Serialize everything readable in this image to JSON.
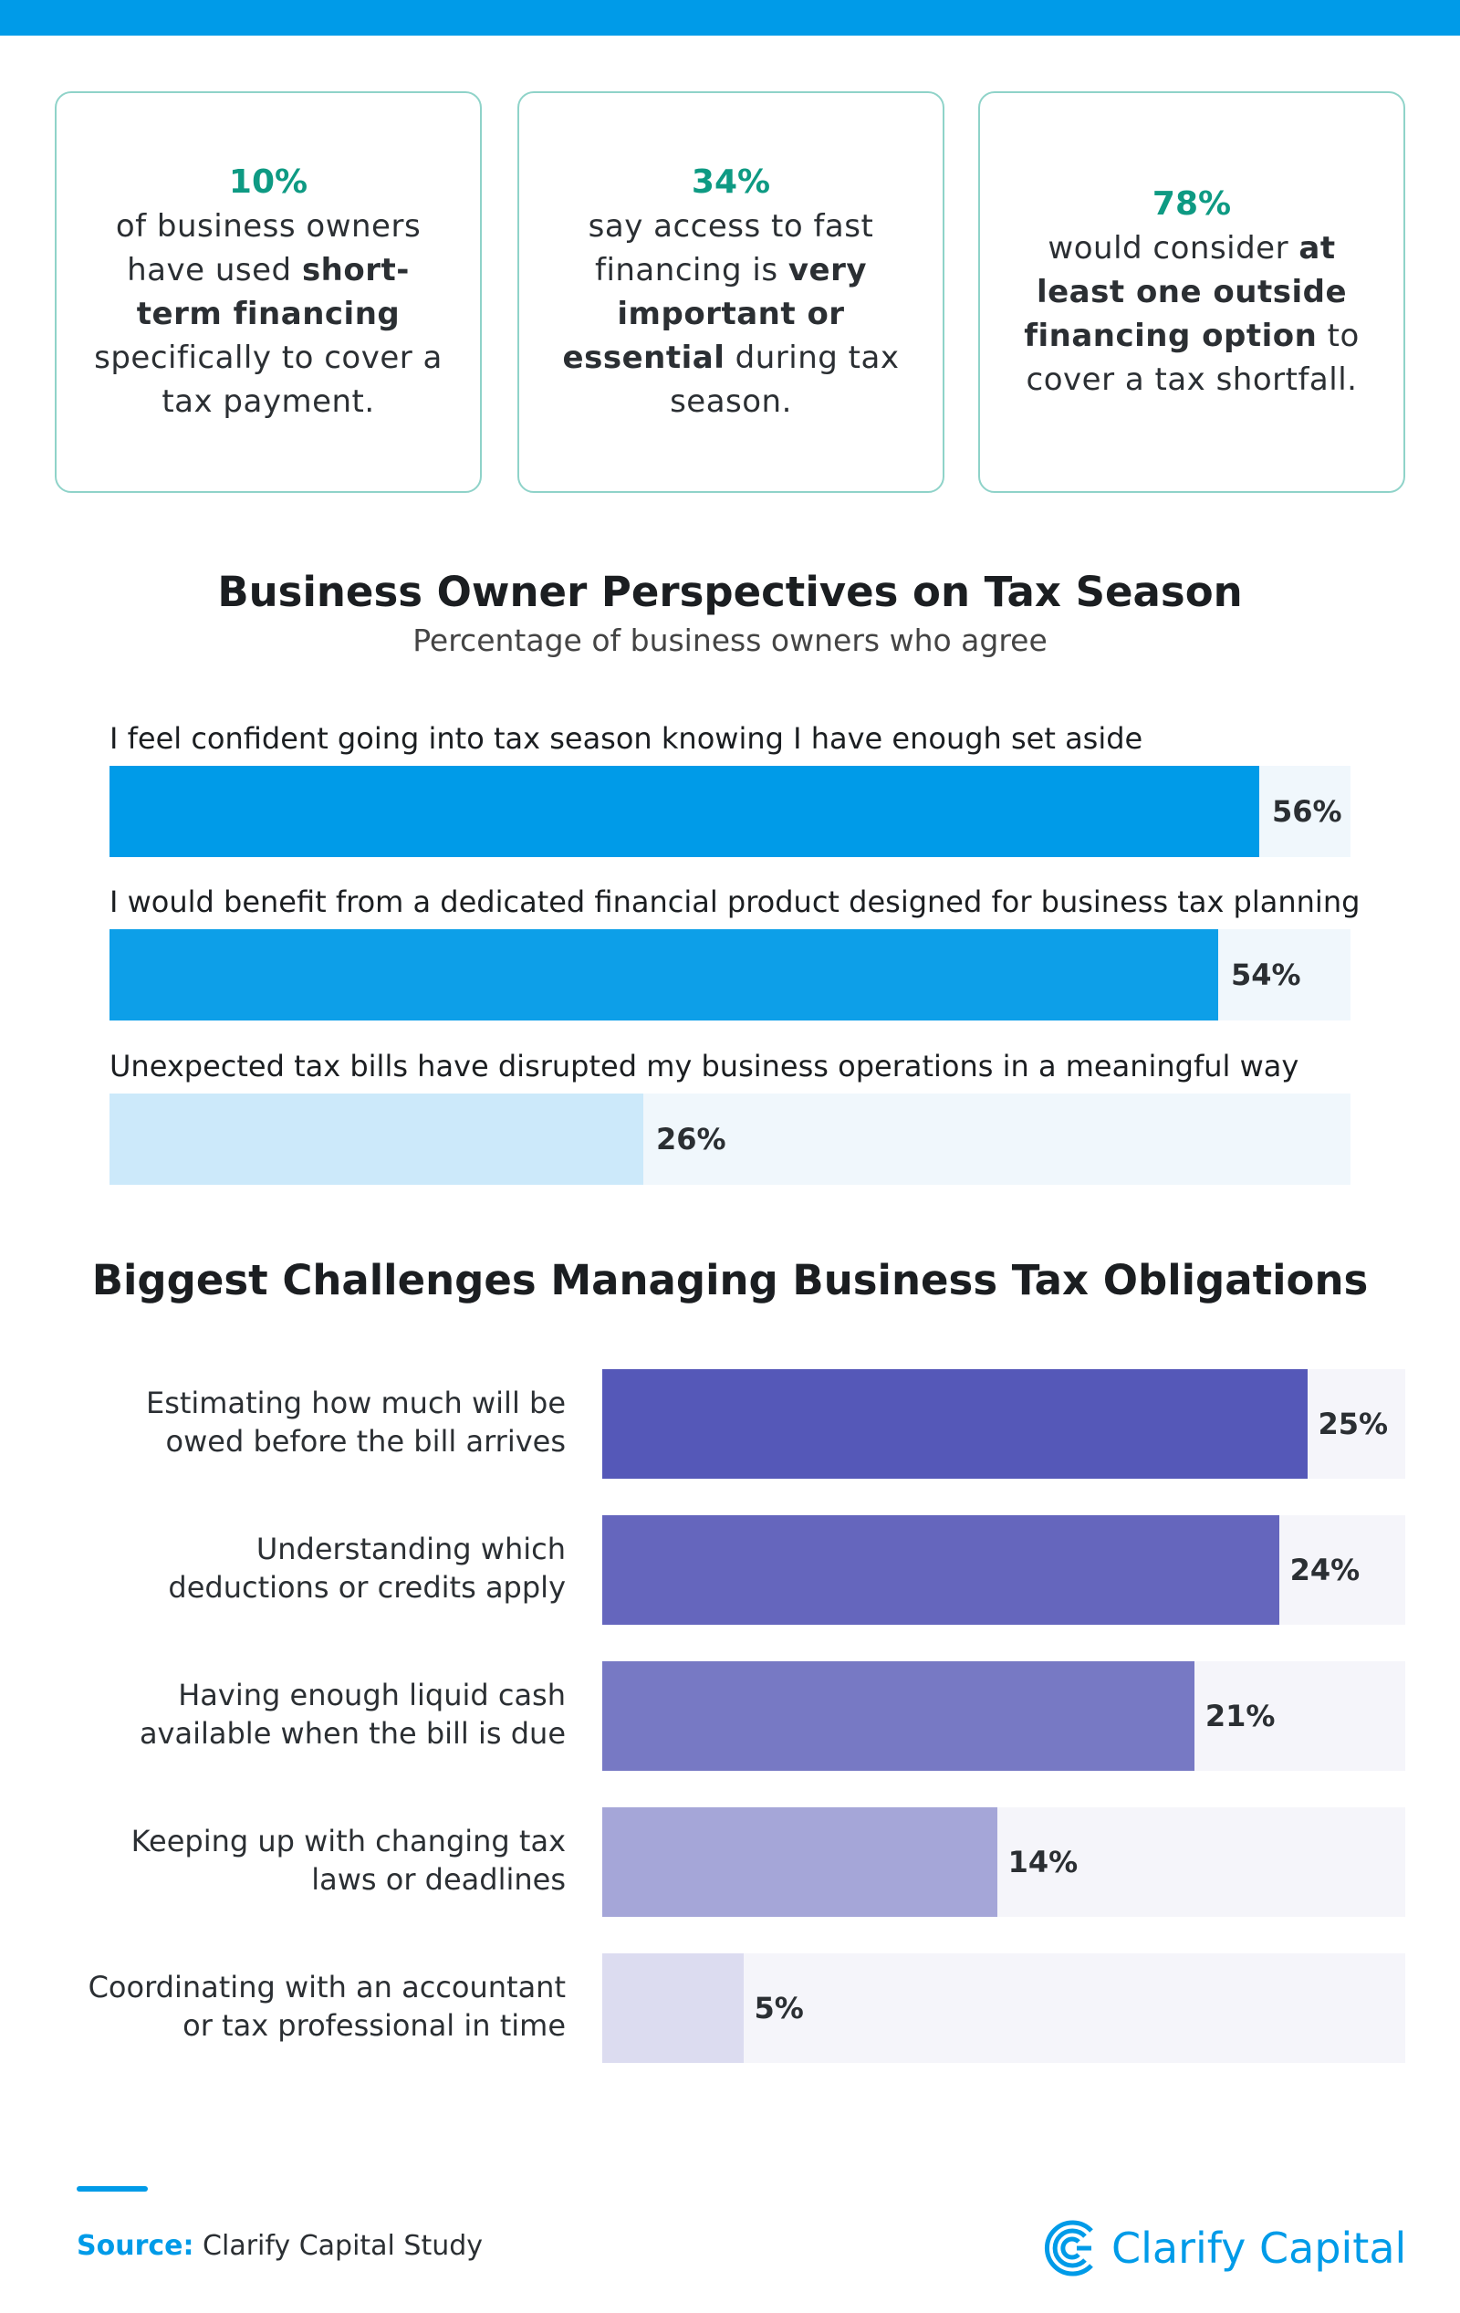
{
  "colors": {
    "brand": "#009be8",
    "stat": "#0e9a83",
    "card_border": "#8fd3c9"
  },
  "stats": [
    {
      "value": "10%",
      "segments": [
        {
          "t": "of business owners have used ",
          "b": false
        },
        {
          "t": "short-term financing",
          "b": true
        },
        {
          "t": " specifically to cover a tax payment.",
          "b": false
        }
      ]
    },
    {
      "value": "34%",
      "segments": [
        {
          "t": "say access to fast financing is ",
          "b": false
        },
        {
          "t": "very important or essential",
          "b": true
        },
        {
          "t": " during tax season.",
          "b": false
        }
      ]
    },
    {
      "value": "78%",
      "segments": [
        {
          "t": "would consider ",
          "b": false
        },
        {
          "t": "at least one outside financing option",
          "b": true
        },
        {
          "t": " to cover a tax shortfall.",
          "b": false
        }
      ]
    }
  ],
  "chart_data": [
    {
      "type": "bar",
      "title": "Business Owner Perspectives on Tax Season",
      "subtitle": "Percentage of business owners who agree",
      "categories": [
        "I feel confident going into tax season knowing I have enough set aside",
        "I would benefit from a dedicated financial product designed for business tax planning",
        "Unexpected tax bills have disrupted my business operations in a meaningful way"
      ],
      "values": [
        56,
        54,
        26
      ],
      "labels": [
        "56%",
        "54%",
        "26%"
      ],
      "bar_colors": [
        "#009be8",
        "#0d9fe8",
        "#cce9fa"
      ],
      "track_color": "#f0f7fc"
    },
    {
      "type": "bar",
      "title": "Biggest Challenges Managing Business Tax Obligations",
      "categories": [
        [
          "Estimating how much will be",
          "owed before the bill arrives"
        ],
        [
          "Understanding which",
          "deductions or credits apply"
        ],
        [
          "Having enough liquid cash",
          "available when the bill is due"
        ],
        [
          "Keeping up with changing tax",
          "laws or deadlines"
        ],
        [
          "Coordinating with an accountant",
          "or tax professional in time"
        ]
      ],
      "values": [
        25,
        24,
        21,
        14,
        5
      ],
      "labels": [
        "25%",
        "24%",
        "21%",
        "14%",
        "5%"
      ],
      "bar_colors": [
        "#5558b8",
        "#6566bd",
        "#7779c4",
        "#a5a6d8",
        "#dcdcf0"
      ],
      "track_color": "#f5f5fa"
    }
  ],
  "footer": {
    "source_label": "Source:",
    "source_text": " Clarify Capital Study",
    "logo_text": "Clarify Capital"
  }
}
